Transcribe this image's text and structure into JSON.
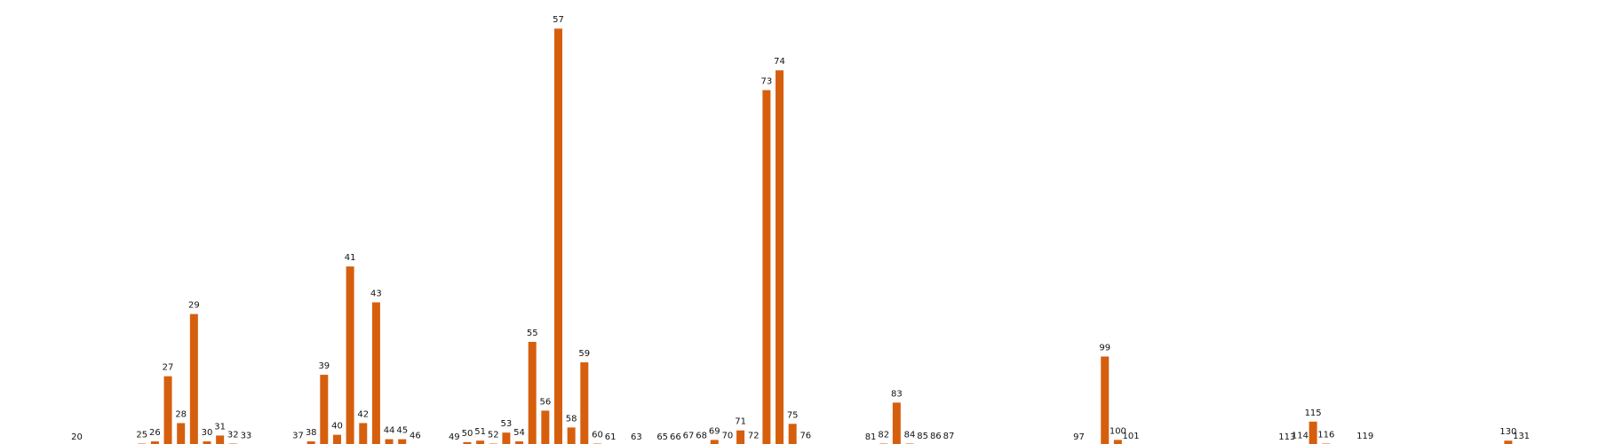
{
  "chart_data": {
    "type": "bar",
    "title": "",
    "xlabel": "",
    "ylabel": "",
    "bar_color": "#d65f0e",
    "label_color": "#111111",
    "ylim": [
      0,
      58
    ],
    "grid": false,
    "legend": "none",
    "axes_visible": false,
    "categories": [
      20,
      25,
      26,
      27,
      28,
      29,
      30,
      31,
      32,
      33,
      37,
      38,
      39,
      40,
      41,
      42,
      43,
      44,
      45,
      46,
      49,
      50,
      51,
      52,
      53,
      54,
      55,
      56,
      57,
      58,
      59,
      60,
      61,
      63,
      65,
      66,
      67,
      68,
      69,
      70,
      71,
      72,
      73,
      74,
      75,
      76,
      81,
      82,
      83,
      84,
      85,
      86,
      87,
      97,
      99,
      100,
      101,
      113,
      114,
      115,
      116,
      119,
      130,
      131
    ],
    "values": [
      0,
      0.3,
      0.6,
      9.5,
      3.1,
      18.0,
      0.6,
      1.4,
      0.3,
      0.2,
      0.2,
      0.6,
      9.7,
      1.5,
      24.5,
      3.1,
      19.6,
      0.9,
      0.9,
      0.2,
      0,
      0.5,
      0.7,
      0.3,
      1.8,
      0.6,
      14.2,
      4.8,
      57.0,
      2.5,
      11.4,
      0.3,
      0,
      0,
      0,
      0,
      0.2,
      0.2,
      0.8,
      0.2,
      2.1,
      0.2,
      48.6,
      51.3,
      3.0,
      0.2,
      0,
      0.3,
      5.9,
      0.3,
      0.1,
      0.1,
      0.1,
      0,
      12.2,
      0.8,
      0.1,
      0,
      0.2,
      3.3,
      0.3,
      0.1,
      0.7,
      0.1
    ]
  }
}
